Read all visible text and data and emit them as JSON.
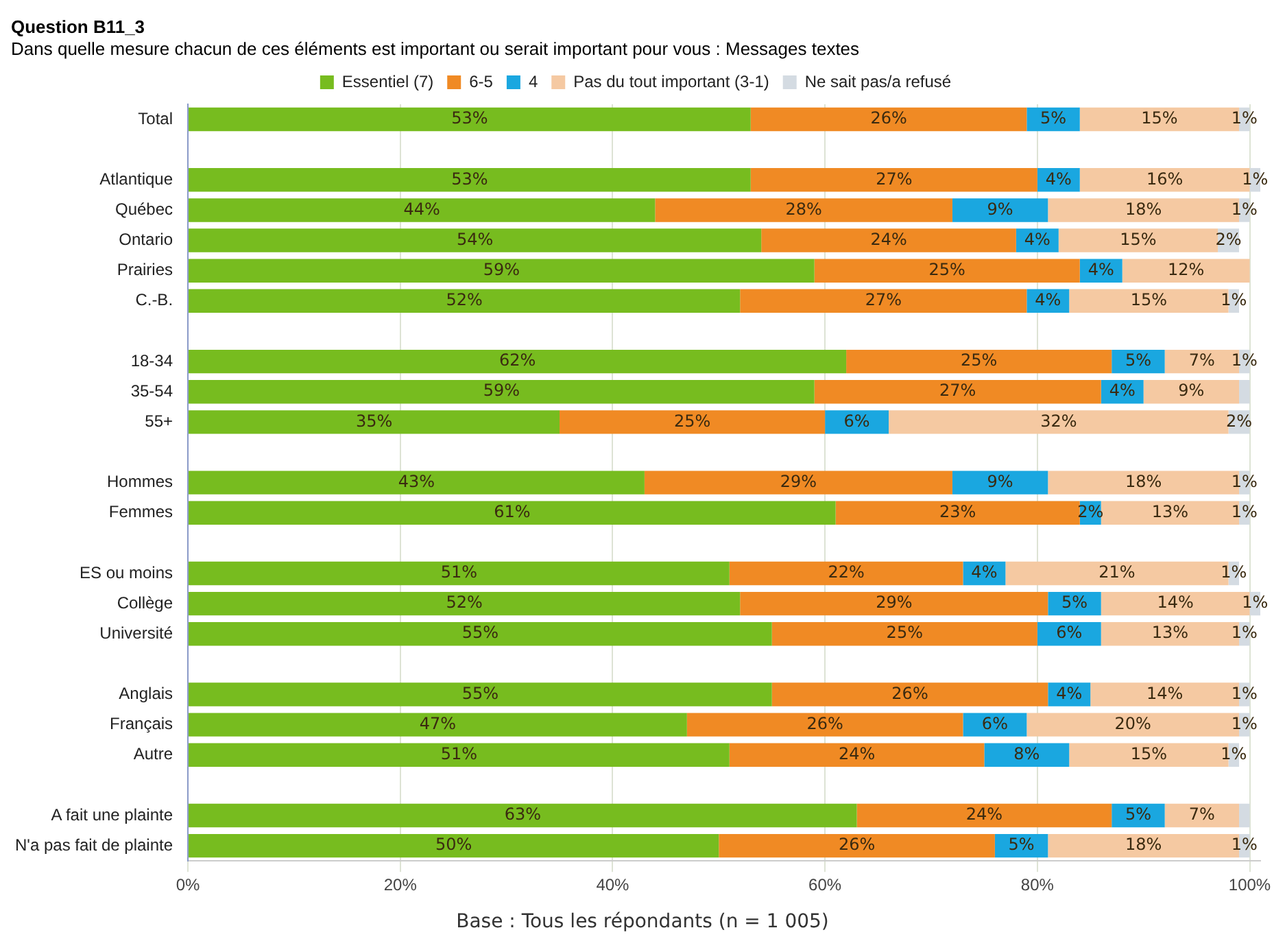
{
  "chart_data": {
    "type": "bar",
    "orientation": "horizontal",
    "stacked": true,
    "title": "Question B11_3",
    "subtitle": "Dans quelle mesure chacun de ces éléments est important ou serait important pour vous : Messages textes",
    "categories": [
      "Total",
      null,
      "Atlantique",
      "Québec",
      "Ontario",
      "Prairies",
      "C.-B.",
      null,
      "18-34",
      "35-54",
      "55+",
      null,
      "Hommes",
      "Femmes",
      null,
      "ES ou moins",
      "Collège",
      "Université",
      null,
      "Anglais",
      "Français",
      "Autre",
      null,
      "A fait une plainte",
      "N'a pas fait de plainte"
    ],
    "series": [
      {
        "name": "Essentiel (7)",
        "color": "#77bc1f",
        "values": [
          53,
          null,
          53,
          44,
          54,
          59,
          52,
          null,
          62,
          59,
          35,
          null,
          43,
          61,
          null,
          51,
          52,
          55,
          null,
          55,
          47,
          51,
          null,
          63,
          50
        ],
        "value_labels": [
          "53%",
          null,
          "53%",
          "44%",
          "54%",
          "59%",
          "52%",
          null,
          "62%",
          "59%",
          "35%",
          null,
          "43%",
          "61%",
          null,
          "51%",
          "52%",
          "55%",
          null,
          "55%",
          "47%",
          "51%",
          null,
          "63%",
          "50%"
        ]
      },
      {
        "name": "6-5",
        "color": "#f08a24",
        "values": [
          26,
          null,
          27,
          28,
          24,
          25,
          27,
          null,
          25,
          27,
          25,
          null,
          29,
          23,
          null,
          22,
          29,
          25,
          null,
          26,
          26,
          24,
          null,
          24,
          26
        ],
        "value_labels": [
          "26%",
          null,
          "27%",
          "28%",
          "24%",
          "25%",
          "27%",
          null,
          "25%",
          "27%",
          "25%",
          null,
          "29%",
          "23%",
          null,
          "22%",
          "29%",
          "25%",
          null,
          "26%",
          "26%",
          "24%",
          null,
          "24%",
          "26%"
        ]
      },
      {
        "name": "4",
        "color": "#1aa7e0",
        "values": [
          5,
          null,
          4,
          9,
          4,
          4,
          4,
          null,
          5,
          4,
          6,
          null,
          9,
          2,
          null,
          4,
          5,
          6,
          null,
          4,
          6,
          8,
          null,
          5,
          5
        ],
        "value_labels": [
          "5%",
          null,
          "4%",
          "9%",
          "4%",
          "4%",
          "4%",
          null,
          "5%",
          "4%",
          "6%",
          null,
          "9%",
          "2%",
          null,
          "4%",
          "5%",
          "6%",
          null,
          "4%",
          "6%",
          "8%",
          null,
          "5%",
          "5%"
        ]
      },
      {
        "name": "Pas du tout important (3-1)",
        "color": "#f5c9a2",
        "values": [
          15,
          null,
          16,
          18,
          15,
          12,
          15,
          null,
          7,
          9,
          32,
          null,
          18,
          13,
          null,
          21,
          14,
          13,
          null,
          14,
          20,
          15,
          null,
          7,
          18
        ],
        "value_labels": [
          "15%",
          null,
          "16%",
          "18%",
          "15%",
          "12%",
          "15%",
          null,
          "7%",
          "9%",
          "32%",
          null,
          "18%",
          "13%",
          null,
          "21%",
          "14%",
          "13%",
          null,
          "14%",
          "20%",
          "15%",
          null,
          "7%",
          "18%"
        ]
      },
      {
        "name": "Ne sait pas/a refusé",
        "color": "#d4dbe2",
        "values": [
          1,
          null,
          1,
          1,
          2,
          0,
          1,
          null,
          1,
          1,
          2,
          null,
          1,
          1,
          null,
          1,
          1,
          1,
          null,
          1,
          1,
          1,
          null,
          1,
          1
        ],
        "value_labels": [
          "1%",
          null,
          "1%",
          "1%",
          "2%",
          null,
          "1%",
          null,
          "1%",
          null,
          "2%",
          null,
          "1%",
          "1%",
          null,
          "1%",
          "1%",
          "1%",
          null,
          "1%",
          "1%",
          "1%",
          null,
          null,
          "1%"
        ]
      }
    ],
    "xlim": [
      0,
      101
    ],
    "xticks": [
      {
        "value": 0,
        "label": "0%"
      },
      {
        "value": 20,
        "label": "20%"
      },
      {
        "value": 40,
        "label": "40%"
      },
      {
        "value": 60,
        "label": "60%"
      },
      {
        "value": 80,
        "label": "80%"
      },
      {
        "value": 100,
        "label": "100%"
      }
    ],
    "grid": "x",
    "legend": "top",
    "annotations": [
      "Base : Tous les répondants (n = 1 005)"
    ]
  }
}
